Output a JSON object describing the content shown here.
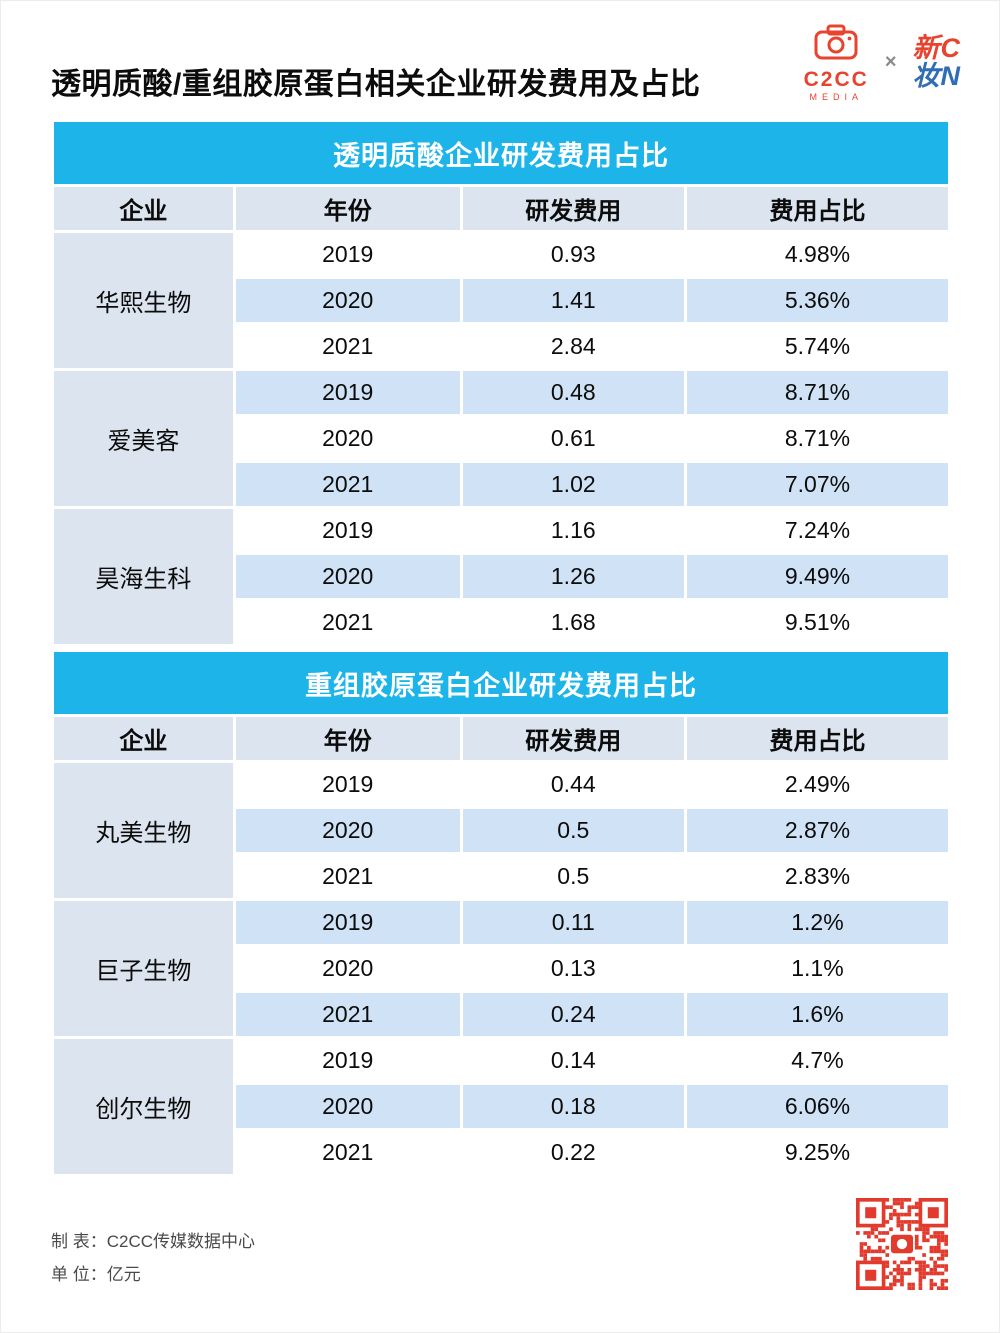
{
  "page": {
    "title": "透明质酸/重组胶原蛋白相关企业研发费用及占比",
    "logos": {
      "c2cc": "C2CC",
      "c2cc_sub": "MEDIA",
      "cross": "×",
      "xz_line1": "新C",
      "xz_line2": "妆N"
    },
    "footer": {
      "made_by_label": "制 表：C2CC传媒数据中心",
      "unit_label": "单 位：亿元"
    }
  },
  "colors": {
    "cyan": "#1db4ea",
    "stripe_blue": "#cfe2f6",
    "header_gray": "#dce5ef",
    "brand_red": "#e8432e",
    "brand_blue": "#2f6db5",
    "qr_red": "#e23b2e"
  },
  "chart_data": [
    {
      "type": "table",
      "title": "透明质酸企业研发费用占比",
      "columns": [
        "企业",
        "年份",
        "研发费用",
        "费用占比"
      ],
      "unit": "亿元",
      "groups": [
        {
          "company": "华熙生物",
          "rows": [
            [
              "2019",
              "0.93",
              "4.98%"
            ],
            [
              "2020",
              "1.41",
              "5.36%"
            ],
            [
              "2021",
              "2.84",
              "5.74%"
            ]
          ]
        },
        {
          "company": "爱美客",
          "rows": [
            [
              "2019",
              "0.48",
              "8.71%"
            ],
            [
              "2020",
              "0.61",
              "8.71%"
            ],
            [
              "2021",
              "1.02",
              "7.07%"
            ]
          ]
        },
        {
          "company": "昊海生科",
          "rows": [
            [
              "2019",
              "1.16",
              "7.24%"
            ],
            [
              "2020",
              "1.26",
              "9.49%"
            ],
            [
              "2021",
              "1.68",
              "9.51%"
            ]
          ]
        }
      ]
    },
    {
      "type": "table",
      "title": "重组胶原蛋白企业研发费用占比",
      "columns": [
        "企业",
        "年份",
        "研发费用",
        "费用占比"
      ],
      "unit": "亿元",
      "groups": [
        {
          "company": "丸美生物",
          "rows": [
            [
              "2019",
              "0.44",
              "2.49%"
            ],
            [
              "2020",
              "0.5",
              "2.87%"
            ],
            [
              "2021",
              "0.5",
              "2.83%"
            ]
          ]
        },
        {
          "company": "巨子生物",
          "rows": [
            [
              "2019",
              "0.11",
              "1.2%"
            ],
            [
              "2020",
              "0.13",
              "1.1%"
            ],
            [
              "2021",
              "0.24",
              "1.6%"
            ]
          ]
        },
        {
          "company": "创尔生物",
          "rows": [
            [
              "2019",
              "0.14",
              "4.7%"
            ],
            [
              "2020",
              "0.18",
              "6.06%"
            ],
            [
              "2021",
              "0.22",
              "9.25%"
            ]
          ]
        }
      ]
    }
  ]
}
